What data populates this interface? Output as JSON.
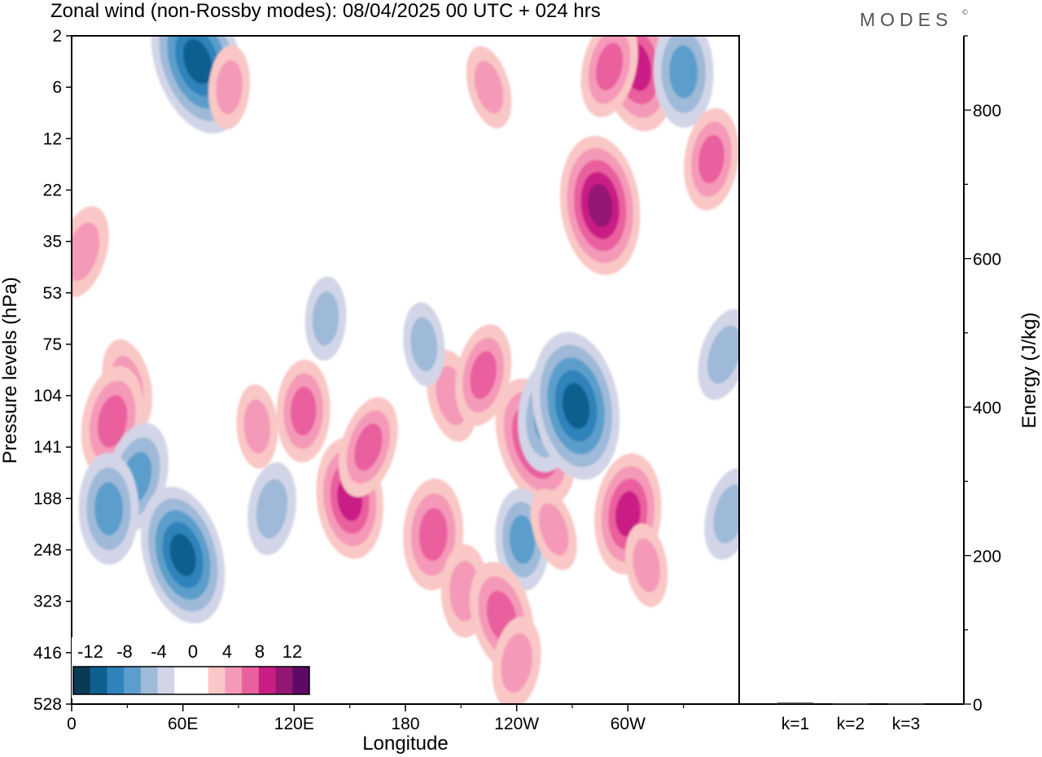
{
  "header": {
    "title": "Zonal wind (non-Rossby modes):  08/04/2025  00 UTC  + 024 hrs",
    "brand": "MODES",
    "brand_mark": "©"
  },
  "colors": {
    "negative": [
      "#0b3a57",
      "#0f5f8f",
      "#2d83ba",
      "#5c9ecb",
      "#9fbad8",
      "#d2d5e7"
    ],
    "zero": "#ffffff",
    "positive": [
      "#f9c7c5",
      "#f49ab8",
      "#ea5f9e",
      "#c91f85",
      "#951774",
      "#5c0a66"
    ]
  },
  "chart_data": [
    {
      "type": "heatmap",
      "title": "Zonal wind (non-Rossby modes):  08/04/2025  00 UTC  + 024 hrs",
      "xlabel": "Longitude",
      "ylabel": "Pressure levels (hPa)",
      "x_ticks": [
        "0",
        "60E",
        "120E",
        "180",
        "120W",
        "60W"
      ],
      "x_tick_values": [
        0,
        60,
        120,
        180,
        240,
        300
      ],
      "x_range": [
        0,
        360
      ],
      "y_ticks": [
        "2",
        "6",
        "12",
        "22",
        "35",
        "53",
        "75",
        "104",
        "141",
        "188",
        "248",
        "323",
        "416",
        "528"
      ],
      "colorbar": {
        "labels": [
          "-12",
          "-8",
          "-4",
          "0",
          "4",
          "8",
          "12"
        ],
        "levels": [
          -14,
          -12,
          -10,
          -8,
          -6,
          -4,
          -2,
          2,
          4,
          6,
          8,
          10,
          12,
          14
        ]
      },
      "features": [
        {
          "lon": 68,
          "level_index": 0.5,
          "value": -10
        },
        {
          "lon": 85,
          "level_index": 1.0,
          "value": 3
        },
        {
          "lon": 305,
          "level_index": 0.6,
          "value": 8
        },
        {
          "lon": 290,
          "level_index": 0.6,
          "value": 5
        },
        {
          "lon": 330,
          "level_index": 0.7,
          "value": -6
        },
        {
          "lon": 225,
          "level_index": 1.0,
          "value": 3
        },
        {
          "lon": 345,
          "level_index": 2.4,
          "value": 5
        },
        {
          "lon": 285,
          "level_index": 3.3,
          "value": 9
        },
        {
          "lon": 6,
          "level_index": 4.2,
          "value": 4
        },
        {
          "lon": 125,
          "level_index": 7.3,
          "value": 5
        },
        {
          "lon": 30,
          "level_index": 6.8,
          "value": 4
        },
        {
          "lon": 22,
          "level_index": 7.5,
          "value": 6
        },
        {
          "lon": 100,
          "level_index": 7.6,
          "value": 3
        },
        {
          "lon": 250,
          "level_index": 7.9,
          "value": 8
        },
        {
          "lon": 257,
          "level_index": 7.4,
          "value": -6
        },
        {
          "lon": 272,
          "level_index": 7.2,
          "value": -10
        },
        {
          "lon": 35,
          "level_index": 8.6,
          "value": -6
        },
        {
          "lon": 20,
          "level_index": 9.2,
          "value": -6
        },
        {
          "lon": 60,
          "level_index": 10.1,
          "value": -9
        },
        {
          "lon": 108,
          "level_index": 9.2,
          "value": -4
        },
        {
          "lon": 150,
          "level_index": 9.0,
          "value": 7
        },
        {
          "lon": 160,
          "level_index": 8.0,
          "value": 5
        },
        {
          "lon": 195,
          "level_index": 9.7,
          "value": 6
        },
        {
          "lon": 205,
          "level_index": 7.0,
          "value": 4
        },
        {
          "lon": 222,
          "level_index": 6.6,
          "value": 5
        },
        {
          "lon": 243,
          "level_index": 9.8,
          "value": -5
        },
        {
          "lon": 260,
          "level_index": 9.6,
          "value": 3
        },
        {
          "lon": 300,
          "level_index": 9.3,
          "value": 7
        },
        {
          "lon": 310,
          "level_index": 10.3,
          "value": 3
        },
        {
          "lon": 355,
          "level_index": 9.3,
          "value": -4
        },
        {
          "lon": 212,
          "level_index": 10.8,
          "value": 4
        },
        {
          "lon": 232,
          "level_index": 11.3,
          "value": 6
        },
        {
          "lon": 240,
          "level_index": 12.2,
          "value": 4
        },
        {
          "lon": 190,
          "level_index": 6.0,
          "value": -3
        },
        {
          "lon": 352,
          "level_index": 6.2,
          "value": -4
        },
        {
          "lon": 137,
          "level_index": 5.5,
          "value": -3
        }
      ]
    },
    {
      "type": "bar",
      "ylabel": "Energy (J/kg)",
      "categories": [
        "k=1",
        "k=2",
        "k=3"
      ],
      "values": [
        2,
        1,
        1
      ],
      "ylim": [
        0,
        900
      ],
      "y_ticks": [
        0,
        200,
        400,
        600,
        800
      ]
    }
  ]
}
